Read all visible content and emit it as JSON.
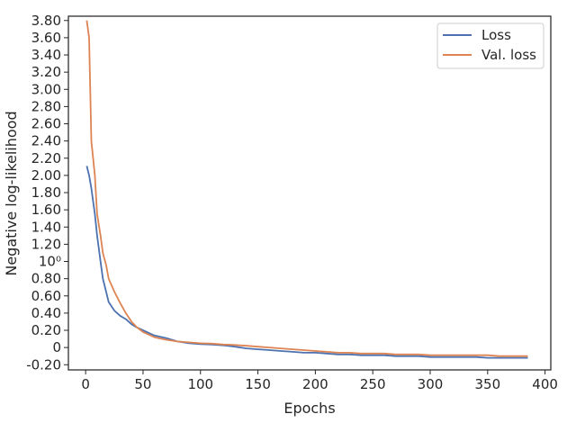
{
  "chart_data": {
    "type": "line",
    "xlabel": "Epochs",
    "ylabel": "Negative log-likelihood",
    "x_ticks": [
      0,
      50,
      100,
      150,
      200,
      250,
      300,
      350,
      400
    ],
    "x_tick_labels": [
      "0",
      "50",
      "100",
      "150",
      "200",
      "250",
      "300",
      "350",
      "400"
    ],
    "y_ticks": [
      -0.2,
      0,
      0.2,
      0.4,
      0.6,
      0.8,
      1.0,
      1.2,
      1.4,
      1.6,
      1.8,
      2.0,
      2.2,
      2.4,
      2.6,
      2.8,
      3.0,
      3.2,
      3.4,
      3.6,
      3.8
    ],
    "y_tick_labels": [
      "-0.20",
      "0",
      "0.20",
      "0.40",
      "0.60",
      "0.80",
      "10⁰",
      "1.20",
      "1.40",
      "1.60",
      "1.80",
      "2.00",
      "2.20",
      "2.40",
      "2.60",
      "2.80",
      "3.00",
      "3.20",
      "3.40",
      "3.60",
      "3.80"
    ],
    "xlim": [
      -15,
      405
    ],
    "ylim": [
      -0.26,
      3.85
    ],
    "grid": false,
    "legend_position": "top-right",
    "series": [
      {
        "name": "Loss",
        "color": "#4c72b0",
        "x": [
          1,
          3,
          5,
          8,
          10,
          13,
          15,
          18,
          20,
          25,
          30,
          35,
          40,
          45,
          50,
          55,
          60,
          70,
          80,
          90,
          100,
          110,
          120,
          130,
          140,
          150,
          160,
          170,
          180,
          190,
          200,
          210,
          220,
          230,
          240,
          250,
          260,
          270,
          280,
          290,
          300,
          310,
          320,
          330,
          340,
          350,
          360,
          370,
          380,
          385
        ],
        "y": [
          2.11,
          2.0,
          1.85,
          1.55,
          1.3,
          1.0,
          0.8,
          0.64,
          0.53,
          0.43,
          0.37,
          0.33,
          0.27,
          0.23,
          0.2,
          0.17,
          0.14,
          0.11,
          0.07,
          0.05,
          0.04,
          0.035,
          0.025,
          0.01,
          -0.01,
          -0.02,
          -0.03,
          -0.04,
          -0.05,
          -0.06,
          -0.06,
          -0.07,
          -0.08,
          -0.08,
          -0.09,
          -0.09,
          -0.09,
          -0.1,
          -0.1,
          -0.1,
          -0.11,
          -0.11,
          -0.11,
          -0.11,
          -0.11,
          -0.12,
          -0.12,
          -0.12,
          -0.12,
          -0.12
        ]
      },
      {
        "name": "Val. loss",
        "color": "#dd8452",
        "x": [
          1,
          3,
          5,
          8,
          10,
          13,
          15,
          18,
          20,
          25,
          30,
          35,
          40,
          45,
          50,
          55,
          60,
          70,
          80,
          90,
          100,
          110,
          120,
          130,
          140,
          150,
          160,
          170,
          180,
          190,
          200,
          210,
          220,
          230,
          240,
          250,
          260,
          270,
          280,
          290,
          300,
          310,
          320,
          330,
          340,
          350,
          360,
          370,
          380,
          385
        ],
        "y": [
          3.8,
          3.6,
          2.4,
          2.0,
          1.55,
          1.3,
          1.1,
          0.95,
          0.8,
          0.65,
          0.52,
          0.4,
          0.3,
          0.23,
          0.18,
          0.15,
          0.12,
          0.09,
          0.07,
          0.06,
          0.05,
          0.045,
          0.035,
          0.03,
          0.02,
          0.01,
          0.0,
          -0.01,
          -0.02,
          -0.03,
          -0.04,
          -0.05,
          -0.06,
          -0.06,
          -0.07,
          -0.07,
          -0.07,
          -0.08,
          -0.08,
          -0.08,
          -0.09,
          -0.09,
          -0.09,
          -0.09,
          -0.09,
          -0.09,
          -0.1,
          -0.1,
          -0.1,
          -0.1
        ]
      }
    ]
  }
}
